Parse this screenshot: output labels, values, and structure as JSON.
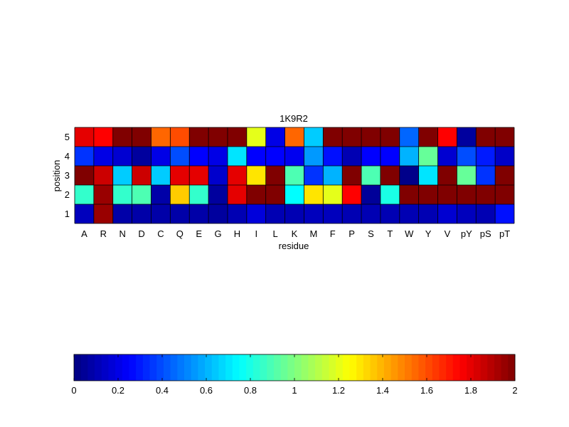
{
  "chart_data": [
    {
      "type": "heatmap",
      "title": "1K9R2",
      "xlabel": "residue",
      "ylabel": "position",
      "x_categories": [
        "A",
        "R",
        "N",
        "D",
        "C",
        "Q",
        "E",
        "G",
        "H",
        "I",
        "L",
        "K",
        "M",
        "F",
        "P",
        "S",
        "T",
        "W",
        "Y",
        "V",
        "pY",
        "pS",
        "pT"
      ],
      "y_categories": [
        "1",
        "2",
        "3",
        "4",
        "5"
      ],
      "clim": [
        0,
        2
      ],
      "colormap": "jet",
      "grid": true,
      "values": [
        [
          0.12,
          1.95,
          0.08,
          0.08,
          0.08,
          0.08,
          0.08,
          0.06,
          0.1,
          0.18,
          0.1,
          0.1,
          0.12,
          0.12,
          0.1,
          0.1,
          0.1,
          0.1,
          0.1,
          0.16,
          0.12,
          0.1,
          0.28
        ],
        [
          0.85,
          1.95,
          0.85,
          0.9,
          0.08,
          1.35,
          0.85,
          0.06,
          1.8,
          2.0,
          2.0,
          0.75,
          1.3,
          1.2,
          1.75,
          0.05,
          0.8,
          2.0,
          2.0,
          2.0,
          2.0,
          2.0,
          2.0
        ],
        [
          2.0,
          1.85,
          0.65,
          1.85,
          0.65,
          1.8,
          1.8,
          0.15,
          1.8,
          1.3,
          2.0,
          0.9,
          0.35,
          0.6,
          2.0,
          0.9,
          2.0,
          0.02,
          0.7,
          2.0,
          0.95,
          0.35,
          2.0
        ],
        [
          0.35,
          0.2,
          0.16,
          0.06,
          0.2,
          0.4,
          0.25,
          0.2,
          0.7,
          0.25,
          0.25,
          0.22,
          0.55,
          0.28,
          0.1,
          0.25,
          0.25,
          0.6,
          0.95,
          0.16,
          0.4,
          0.3,
          0.14
        ],
        [
          1.8,
          1.75,
          2.0,
          2.0,
          1.55,
          1.6,
          2.0,
          2.0,
          2.0,
          1.2,
          0.2,
          1.55,
          0.65,
          2.0,
          2.0,
          2.0,
          2.0,
          0.45,
          2.0,
          1.75,
          0.06,
          2.0,
          2.0
        ]
      ]
    },
    {
      "type": "colorbar",
      "ticks": [
        "0",
        "0.2",
        "0.4",
        "0.6",
        "0.8",
        "1",
        "1.2",
        "1.4",
        "1.6",
        "1.8",
        "2"
      ],
      "range": [
        0,
        2
      ]
    }
  ]
}
